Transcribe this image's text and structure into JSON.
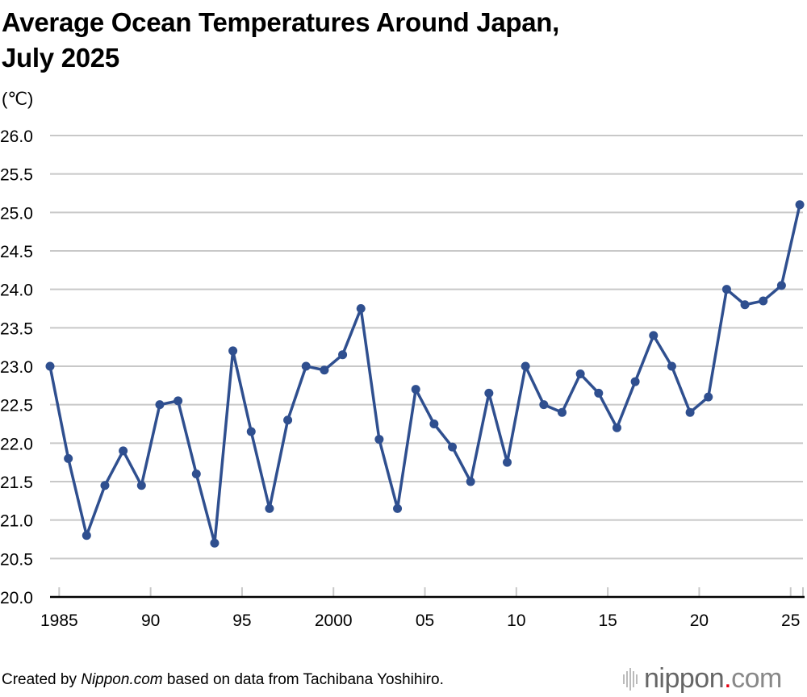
{
  "chart_data": {
    "type": "line",
    "title": "Average Ocean Temperatures Around Japan, July 2025",
    "title_lines": [
      "Average Ocean Temperatures Around Japan,",
      "July 2025"
    ],
    "ylabel": "(℃)",
    "xlabel": "",
    "ylim": [
      20.0,
      26.0
    ],
    "yticks": [
      "20.0",
      "20.5",
      "21.0",
      "21.5",
      "22.0",
      "22.5",
      "23.0",
      "23.5",
      "24.0",
      "24.5",
      "25.0",
      "25.5",
      "26.0"
    ],
    "xtick_labels": [
      {
        "year": 1985,
        "label": "1985"
      },
      {
        "year": 1990,
        "label": "90"
      },
      {
        "year": 1995,
        "label": "95"
      },
      {
        "year": 2000,
        "label": "2000"
      },
      {
        "year": 2005,
        "label": "05"
      },
      {
        "year": 2010,
        "label": "10"
      },
      {
        "year": 2015,
        "label": "15"
      },
      {
        "year": 2020,
        "label": "20"
      },
      {
        "year": 2025,
        "label": "25"
      }
    ],
    "grid": true,
    "line_color": "#2f4f8f",
    "x": [
      1984,
      1985,
      1986,
      1987,
      1988,
      1989,
      1990,
      1991,
      1992,
      1993,
      1994,
      1995,
      1996,
      1997,
      1998,
      1999,
      2000,
      2001,
      2002,
      2003,
      2004,
      2005,
      2006,
      2007,
      2008,
      2009,
      2010,
      2011,
      2012,
      2013,
      2014,
      2015,
      2016,
      2017,
      2018,
      2019,
      2020,
      2021,
      2022,
      2023,
      2024,
      2025
    ],
    "values": [
      23.0,
      21.8,
      20.8,
      21.45,
      21.9,
      21.45,
      22.5,
      22.55,
      21.6,
      20.7,
      23.2,
      22.15,
      21.15,
      22.3,
      23.0,
      22.95,
      23.15,
      23.75,
      22.05,
      21.15,
      22.7,
      22.25,
      21.95,
      21.5,
      22.65,
      21.75,
      23.0,
      22.5,
      22.4,
      22.9,
      22.65,
      22.2,
      22.8,
      23.4,
      23.0,
      22.4,
      22.6,
      24.0,
      23.8,
      23.85,
      24.05,
      25.1
    ]
  },
  "footer": {
    "prefix": "Created by ",
    "site": "Nippon.com",
    "suffix": " based on data from Tachibana Yoshihiro."
  },
  "logo": {
    "name": "nippon",
    "dot": ".",
    "tld": "com",
    "accent": "#e60012"
  }
}
